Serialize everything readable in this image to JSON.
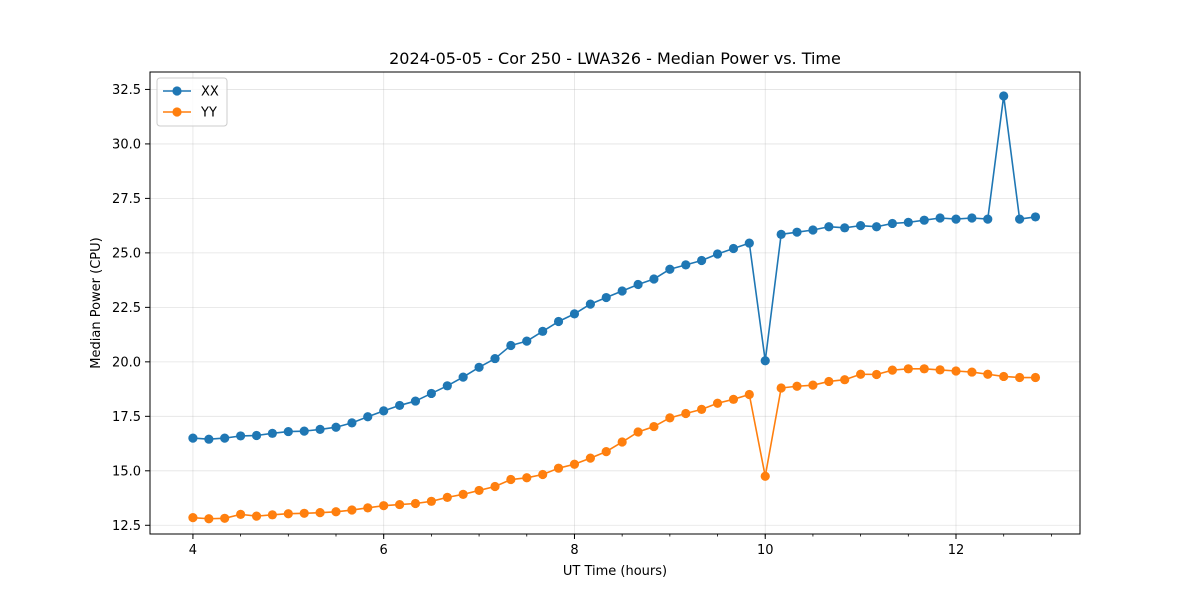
{
  "chart_data": {
    "type": "line",
    "title": "2024-05-05 - Cor 250 - LWA326 - Median Power vs. Time",
    "xlabel": "UT Time (hours)",
    "ylabel": "Median Power (CPU)",
    "xlim": [
      3.55,
      13.3
    ],
    "ylim": [
      12.1,
      33.3
    ],
    "xticks": [
      4,
      6,
      8,
      10,
      12
    ],
    "xtick_labels": [
      "4",
      "6",
      "8",
      "10",
      "12"
    ],
    "xminor_step": 0.5,
    "yticks": [
      12.5,
      15.0,
      17.5,
      20.0,
      22.5,
      25.0,
      27.5,
      30.0,
      32.5
    ],
    "ytick_labels": [
      "12.5",
      "15.0",
      "17.5",
      "20.0",
      "22.5",
      "25.0",
      "27.5",
      "30.0",
      "32.5"
    ],
    "grid": true,
    "legend_position": "top-left",
    "x": [
      4.0,
      4.167,
      4.333,
      4.5,
      4.667,
      4.833,
      5.0,
      5.167,
      5.333,
      5.5,
      5.667,
      5.833,
      6.0,
      6.167,
      6.333,
      6.5,
      6.667,
      6.833,
      7.0,
      7.167,
      7.333,
      7.5,
      7.667,
      7.833,
      8.0,
      8.167,
      8.333,
      8.5,
      8.667,
      8.833,
      9.0,
      9.167,
      9.333,
      9.5,
      9.667,
      9.833,
      10.0,
      10.167,
      10.333,
      10.5,
      10.667,
      10.833,
      11.0,
      11.167,
      11.333,
      11.5,
      11.667,
      11.833,
      12.0,
      12.167,
      12.333,
      12.5,
      12.667,
      12.833
    ],
    "series": [
      {
        "name": "XX",
        "color": "#1f77b4",
        "values": [
          16.5,
          16.45,
          16.5,
          16.6,
          16.62,
          16.72,
          16.8,
          16.82,
          16.9,
          17.0,
          17.2,
          17.48,
          17.75,
          18.0,
          18.2,
          18.55,
          18.9,
          19.3,
          19.75,
          20.15,
          20.75,
          20.95,
          21.4,
          21.85,
          22.2,
          22.65,
          22.95,
          23.25,
          23.55,
          23.8,
          24.25,
          24.45,
          24.65,
          24.95,
          25.2,
          25.45,
          20.05,
          25.85,
          25.95,
          26.05,
          26.2,
          26.15,
          26.25,
          26.2,
          26.35,
          26.4,
          26.5,
          26.6,
          26.55,
          26.6,
          26.55,
          32.2,
          26.55,
          26.65
        ]
      },
      {
        "name": "YY",
        "color": "#ff7f0e",
        "values": [
          12.85,
          12.8,
          12.82,
          13.0,
          12.92,
          12.98,
          13.03,
          13.05,
          13.08,
          13.12,
          13.2,
          13.3,
          13.4,
          13.45,
          13.5,
          13.6,
          13.78,
          13.92,
          14.1,
          14.28,
          14.6,
          14.68,
          14.83,
          15.12,
          15.3,
          15.58,
          15.88,
          16.32,
          16.78,
          17.03,
          17.43,
          17.63,
          17.82,
          18.1,
          18.28,
          18.5,
          14.75,
          18.8,
          18.88,
          18.93,
          19.1,
          19.18,
          19.43,
          19.42,
          19.62,
          19.68,
          19.68,
          19.63,
          19.58,
          19.53,
          19.43,
          19.33,
          19.28,
          19.28
        ]
      }
    ]
  }
}
